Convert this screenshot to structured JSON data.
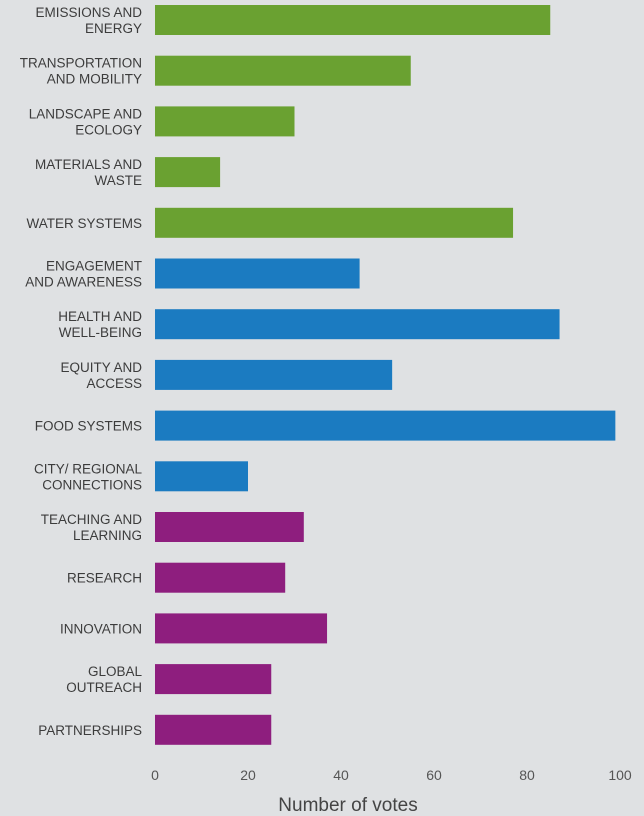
{
  "chart_data": {
    "type": "bar",
    "orientation": "horizontal",
    "title": "",
    "xlabel": "Number of votes",
    "ylabel": "",
    "xlim": [
      0,
      100
    ],
    "xticks": [
      0,
      20,
      40,
      60,
      80,
      100
    ],
    "grid": false,
    "legend": "none",
    "bars": [
      {
        "label": [
          "EMISSIONS AND",
          "ENERGY"
        ],
        "value": 85,
        "color": "#6aa131"
      },
      {
        "label": [
          "TRANSPORTATION",
          "AND MOBILITY"
        ],
        "value": 55,
        "color": "#6aa131"
      },
      {
        "label": [
          "LANDSCAPE AND",
          "ECOLOGY"
        ],
        "value": 30,
        "color": "#6aa131"
      },
      {
        "label": [
          "MATERIALS AND",
          "WASTE"
        ],
        "value": 14,
        "color": "#6aa131"
      },
      {
        "label": [
          "WATER SYSTEMS"
        ],
        "value": 77,
        "color": "#6aa131"
      },
      {
        "label": [
          "ENGAGEMENT",
          "AND AWARENESS"
        ],
        "value": 44,
        "color": "#1b7bc1"
      },
      {
        "label": [
          "HEALTH AND",
          "WELL-BEING"
        ],
        "value": 87,
        "color": "#1b7bc1"
      },
      {
        "label": [
          "EQUITY AND",
          "ACCESS"
        ],
        "value": 51,
        "color": "#1b7bc1"
      },
      {
        "label": [
          "FOOD SYSTEMS"
        ],
        "value": 99,
        "color": "#1b7bc1"
      },
      {
        "label": [
          "CITY/ REGIONAL",
          "CONNECTIONS"
        ],
        "value": 20,
        "color": "#1b7bc1"
      },
      {
        "label": [
          "TEACHING AND",
          "LEARNING"
        ],
        "value": 32,
        "color": "#8e1e7e"
      },
      {
        "label": [
          "RESEARCH"
        ],
        "value": 28,
        "color": "#8e1e7e"
      },
      {
        "label": [
          "INNOVATION"
        ],
        "value": 37,
        "color": "#8e1e7e"
      },
      {
        "label": [
          "GLOBAL",
          "OUTREACH"
        ],
        "value": 25,
        "color": "#8e1e7e"
      },
      {
        "label": [
          "PARTNERSHIPS"
        ],
        "value": 25,
        "color": "#8e1e7e"
      }
    ]
  }
}
